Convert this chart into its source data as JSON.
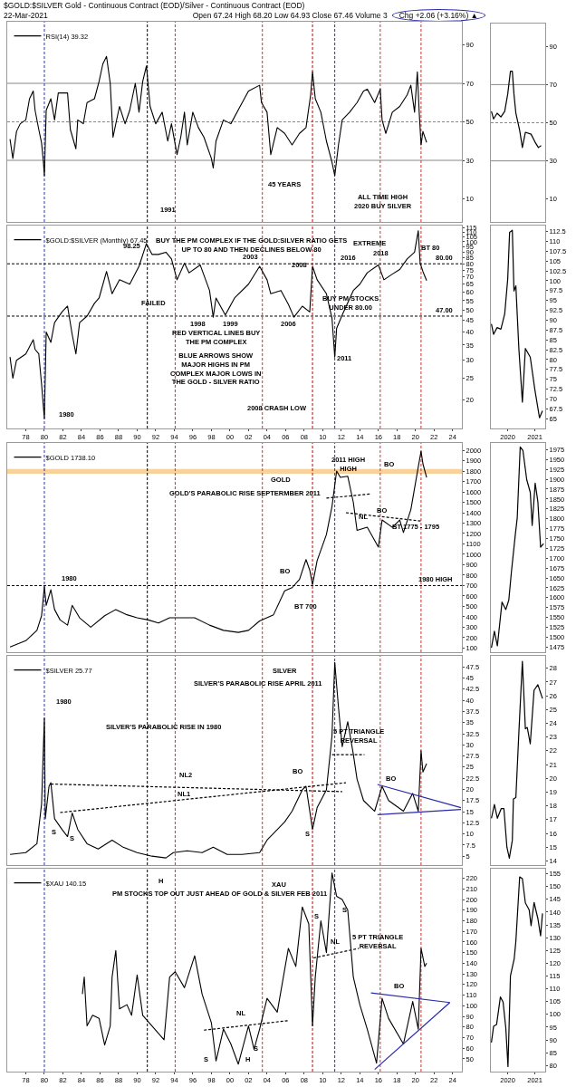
{
  "chart_data": [
    {
      "type": "line",
      "title": "$GOLD:$SILVER Gold - Continuous Contract (EOD)/Silver - Continuous Contract (EOD)",
      "subtitle": "22-Mar-2021",
      "legend": "top left",
      "tick_labels": "y",
      "xlim": [
        1976,
        2025
      ],
      "ylim": [
        -2,
        102
      ],
      "yticks": [
        10,
        30,
        50,
        70,
        90
      ],
      "series": [
        {
          "name": "RSI(14) 39.32",
          "color": "#000000",
          "x": [
            1976.3,
            1976.6,
            1977.0,
            1977.4,
            1978.0,
            1978.4,
            1978.8,
            1979.0,
            1979.4,
            1979.7,
            1979.9,
            1980.0,
            1980.2,
            1980.7,
            1981.1,
            1981.5,
            1982.5,
            1982.8,
            1983.4,
            1983.6,
            1984.2,
            1984.6,
            1985.4,
            1985.9,
            1986.3,
            1986.7,
            1987.1,
            1987.4,
            1987.7,
            1988.1,
            1988.7,
            1989.2,
            1989.8,
            1990.2,
            1990.6,
            1991.0,
            1991.4,
            1992.0,
            1992.7,
            1993.3,
            1993.7,
            1994.3,
            1994.7,
            1995.1,
            1995.4,
            1996.0,
            1996.6,
            1997.2,
            1998.0,
            1998.2,
            1998.5,
            1999.3,
            2000.1,
            2001.1,
            2002.0,
            2003.2,
            2003.4,
            2004.0,
            2004.4,
            2005.1,
            2005.9,
            2006.7,
            2007.5,
            2008.2,
            2008.7,
            2008.9,
            2009.2,
            2009.8,
            2010.4,
            2011.0,
            2011.3,
            2011.7,
            2012.1,
            2012.9,
            2013.7,
            2014.4,
            2014.8,
            2015.6,
            2016.2,
            2016.4,
            2016.8,
            2017.5,
            2018.3,
            2019.1,
            2019.5,
            2019.9,
            2020.2,
            2020.4,
            2020.6,
            2020.8,
            2021.2
          ],
          "values": [
            41,
            31,
            45,
            49,
            51,
            62,
            66,
            56,
            46,
            39,
            29,
            22,
            56,
            62,
            51,
            65,
            65,
            46,
            36,
            51,
            49,
            60,
            62,
            71,
            80,
            84,
            70,
            42,
            49,
            58,
            49,
            56,
            70,
            55,
            71,
            79,
            58,
            49,
            55,
            40,
            49,
            33,
            42,
            55,
            38,
            55,
            47,
            42,
            31,
            26,
            40,
            51,
            49,
            58,
            66,
            69,
            60,
            55,
            33,
            47,
            44,
            38,
            44,
            47,
            64,
            76,
            62,
            55,
            40,
            29,
            22,
            38,
            51,
            55,
            60,
            66,
            67,
            60,
            67,
            51,
            44,
            55,
            58,
            64,
            69,
            55,
            76,
            55,
            38,
            45,
            39.32
          ]
        }
      ],
      "ref_lines": [
        {
          "axis": "y",
          "value": 70,
          "color": "#888888",
          "line_style": "solid"
        },
        {
          "axis": "y",
          "value": 50,
          "color": "#888888",
          "line_style": "dashed"
        },
        {
          "axis": "y",
          "value": 30,
          "color": "#888888",
          "line_style": "solid"
        },
        {
          "axis": "x",
          "value": 1980,
          "color": "#3333aa",
          "line_style": "dashed"
        },
        {
          "axis": "x",
          "value": 1991.1,
          "color": "#000000",
          "line_style": "dashed"
        },
        {
          "axis": "x",
          "value": 1994.1,
          "color": "#cc3333",
          "line_style": "dashed"
        },
        {
          "axis": "x",
          "value": 2003.5,
          "color": "#cc3333",
          "line_style": "dashed"
        },
        {
          "axis": "x",
          "value": 2008.9,
          "color": "#cc0000",
          "line_style": "dashed"
        },
        {
          "axis": "x",
          "value": 2011.3,
          "color": "#3333aa",
          "line_style": "dashed"
        },
        {
          "axis": "x",
          "value": 2016.2,
          "color": "#cc3333",
          "line_style": "dashed"
        },
        {
          "axis": "x",
          "value": 2020.6,
          "color": "#cc3333",
          "line_style": "dashed"
        }
      ],
      "annotations": [
        "Open 67.24 High 68.20 Low 64.93 Close 67.46 Volume 3",
        "Chg +2.06 (+3.16%) ▲",
        "45 YEARS",
        "ALL TIME HIGH\n2020 BUY SILVER",
        "1991"
      ]
    },
    {
      "type": "line",
      "tick_labels": "y",
      "xlim": [
        2019.38,
        2021.38
      ],
      "ylim": [
        -2,
        102
      ],
      "yticks": [
        10,
        30,
        50,
        70,
        90
      ],
      "series": [
        {
          "color": "#000000",
          "x": [
            2019.4,
            2019.48,
            2019.61,
            2019.75,
            2019.89,
            2020.0,
            2020.1,
            2020.17,
            2020.23,
            2020.3,
            2020.44,
            2020.54,
            2020.65,
            2020.86,
            2021.0,
            2021.13,
            2021.23
          ],
          "values": [
            56,
            52,
            55,
            53,
            56,
            65,
            77,
            77,
            65,
            55,
            46,
            37,
            45,
            44,
            40,
            37,
            38
          ]
        }
      ],
      "ref_lines": [
        {
          "axis": "y",
          "value": 70,
          "color": "#888888",
          "line_style": "solid"
        },
        {
          "axis": "y",
          "value": 50,
          "color": "#888888",
          "line_style": "dashed"
        },
        {
          "axis": "y",
          "value": 30,
          "color": "#888888",
          "line_style": "solid"
        }
      ]
    },
    {
      "type": "line",
      "log": true,
      "legend": "top left",
      "xlim": [
        1976,
        2025
      ],
      "ylim": [
        15,
        118
      ],
      "yticks": [
        20,
        25,
        30,
        35,
        40,
        45,
        50,
        55,
        60,
        65,
        70,
        75,
        80,
        85,
        90,
        95,
        100,
        105,
        110,
        115
      ],
      "xticks": [
        {
          "value": 1978,
          "label": "78"
        },
        {
          "value": 1980,
          "label": "80"
        },
        {
          "value": 1982,
          "label": "82"
        },
        {
          "value": 1984,
          "label": "84"
        },
        {
          "value": 1986,
          "label": "86"
        },
        {
          "value": 1988,
          "label": "88"
        },
        {
          "value": 1990,
          "label": "90"
        },
        {
          "value": 1992,
          "label": "92"
        },
        {
          "value": 1994,
          "label": "94"
        },
        {
          "value": 1996,
          "label": "96"
        },
        {
          "value": 1998,
          "label": "98"
        },
        {
          "value": 2000,
          "label": "00"
        },
        {
          "value": 2002,
          "label": "02"
        },
        {
          "value": 2004,
          "label": "04"
        },
        {
          "value": 2006,
          "label": "06"
        },
        {
          "value": 2008,
          "label": "08"
        },
        {
          "value": 2010,
          "label": "10"
        },
        {
          "value": 2012,
          "label": "12"
        },
        {
          "value": 2014,
          "label": "14"
        },
        {
          "value": 2016,
          "label": "16"
        },
        {
          "value": 2018,
          "label": "18"
        },
        {
          "value": 2020,
          "label": "20"
        },
        {
          "value": 2022,
          "label": "22"
        },
        {
          "value": 2024,
          "label": "24"
        }
      ],
      "series": [
        {
          "name": "$GOLD:$SILVER (Monthly) 67.45",
          "color": "#000000",
          "x": [
            1976.3,
            1976.6,
            1977.0,
            1978.0,
            1978.8,
            1979.0,
            1979.4,
            1979.7,
            1980.0,
            1980.2,
            1980.7,
            1981.1,
            1981.9,
            1982.5,
            1983.0,
            1983.4,
            1983.8,
            1984.6,
            1985.4,
            1985.9,
            1986.7,
            1987.3,
            1988.1,
            1989.2,
            1990.2,
            1991.0,
            1991.6,
            1992.3,
            1993.1,
            1993.7,
            1994.3,
            1995.1,
            1995.6,
            1996.8,
            1997.8,
            1998.2,
            1998.5,
            1999.5,
            2000.5,
            2002.0,
            2003.2,
            2004.0,
            2004.4,
            2005.5,
            2006.3,
            2006.9,
            2007.8,
            2008.6,
            2008.9,
            2009.4,
            2010.4,
            2011.0,
            2011.3,
            2011.5,
            2012.1,
            2013.3,
            2014.0,
            2014.8,
            2016.0,
            2016.6,
            2017.5,
            2018.3,
            2019.1,
            2019.9,
            2020.3,
            2020.5,
            2020.8,
            2021.2
          ],
          "values": [
            31,
            25,
            30,
            32,
            37,
            33.5,
            32,
            23.5,
            16.6,
            40,
            36,
            44,
            49,
            52,
            39,
            32,
            44,
            47,
            53.5,
            56.5,
            74,
            59,
            68,
            65,
            78,
            98.25,
            88,
            88,
            90,
            84,
            68,
            80.5,
            73,
            79,
            61,
            46.5,
            56.5,
            47.5,
            56.5,
            65,
            78,
            68,
            59,
            61,
            53,
            46.5,
            52,
            49,
            78,
            68,
            59,
            46,
            31,
            41.5,
            47.5,
            61,
            65,
            73,
            79,
            68,
            72,
            75.5,
            84,
            90,
            112,
            80.5,
            74,
            67.45
          ]
        }
      ],
      "ref_lines": [
        {
          "axis": "y",
          "value": 80,
          "label": "80.00",
          "color": "#000000",
          "line_style": "dashed"
        },
        {
          "axis": "y",
          "value": 47,
          "label": "47.00",
          "color": "#000000",
          "line_style": "dashed"
        },
        {
          "axis": "x",
          "value": 1980,
          "color": "#3333aa",
          "line_style": "dashed"
        },
        {
          "axis": "x",
          "value": 1991.1,
          "color": "#000000",
          "line_style": "dashed"
        },
        {
          "axis": "x",
          "value": 1994.1,
          "color": "#cc3333",
          "line_style": "dashed"
        },
        {
          "axis": "x",
          "value": 2003.5,
          "color": "#cc3333",
          "line_style": "dashed"
        },
        {
          "axis": "x",
          "value": 2008.9,
          "color": "#cc0000",
          "line_style": "dashed"
        },
        {
          "axis": "x",
          "value": 2011.3,
          "color": "#3333aa",
          "line_style": "dashed"
        },
        {
          "axis": "x",
          "value": 2016.2,
          "color": "#cc3333",
          "line_style": "dashed"
        },
        {
          "axis": "x",
          "value": 2020.6,
          "color": "#cc3333",
          "line_style": "dashed"
        }
      ],
      "annotations": [
        "BUY THE PM COMPLEX IF THE GOLD:SILVER RATIO GETS\nUP TO 80 AND THEN DECLINES BELOW 80",
        "98.25",
        "FAILED",
        "2003",
        "2008",
        "2016",
        "2018",
        "EXTREME",
        "BT 80",
        "1998",
        "1999",
        "2006",
        "BUY PM STOCKS\nUNDER 80.00",
        "RED VERTICAL LINES BUY\nTHE PM COMPLEX",
        "BLUE ARROWS SHOW\nMAJOR HIGHS IN PM\nCOMPLEX MAJOR LOWS IN\nTHE GOLD - SILVER RATIO",
        "2008 CRASH LOW",
        "2011",
        "1980"
      ]
    },
    {
      "type": "line",
      "xlim": [
        2019.38,
        2021.38
      ],
      "xticks": [
        {
          "value": 2020,
          "label": "2020"
        },
        {
          "value": 2021,
          "label": "2021"
        }
      ],
      "ylim": [
        62.5,
        114
      ],
      "yticks": [
        65,
        67.5,
        70,
        72.5,
        75,
        77.5,
        80,
        82.5,
        85,
        87.5,
        90,
        92.5,
        95,
        97.5,
        100,
        102.5,
        105,
        107.5,
        110,
        112.5
      ],
      "series": [
        {
          "color": "#000000",
          "x": [
            2019.4,
            2019.48,
            2019.61,
            2019.75,
            2019.89,
            2020.0,
            2020.07,
            2020.17,
            2020.23,
            2020.3,
            2020.41,
            2020.54,
            2020.65,
            2020.83,
            2021.0,
            2021.17,
            2021.28
          ],
          "values": [
            89,
            86.4,
            88.1,
            87.7,
            91.6,
            100.4,
            112.3,
            112.8,
            97.4,
            98.7,
            82.8,
            69.2,
            82.8,
            80.6,
            72.3,
            65.2,
            67
          ]
        }
      ]
    },
    {
      "type": "line",
      "legend": "top left",
      "tick_labels": "y",
      "xlim": [
        1976,
        2025
      ],
      "ylim": [
        60,
        2070
      ],
      "yticks": [
        100,
        200,
        300,
        400,
        500,
        600,
        700,
        800,
        900,
        1000,
        1100,
        1200,
        1300,
        1400,
        1500,
        1600,
        1700,
        1800,
        1900,
        2000
      ],
      "series": [
        {
          "name": "$GOLD 1738.10",
          "color": "#000000",
          "x": [
            1976.3,
            1978.0,
            1979.2,
            1979.7,
            1980.0,
            1980.2,
            1980.7,
            1981.1,
            1981.7,
            1982.5,
            1983.0,
            1983.8,
            1985.0,
            1986.5,
            1987.7,
            1988.9,
            1990.0,
            1991.2,
            1992.3,
            1993.5,
            1994.7,
            1996.2,
            1997.8,
            1999.3,
            2000.9,
            2002.0,
            2003.2,
            2004.7,
            2005.9,
            2006.7,
            2007.5,
            2008.2,
            2008.6,
            2008.9,
            2009.4,
            2010.4,
            2011.0,
            2011.5,
            2011.9,
            2012.7,
            2013.3,
            2013.7,
            2014.8,
            2016.0,
            2016.4,
            2017.5,
            2018.3,
            2018.7,
            2019.5,
            2020.3,
            2020.6,
            2020.8,
            2021.2
          ],
          "values": [
            110,
            170,
            270,
            410,
            690,
            510,
            660,
            470,
            370,
            320,
            510,
            390,
            300,
            410,
            470,
            420,
            390,
            370,
            340,
            390,
            390,
            390,
            320,
            270,
            250,
            270,
            360,
            420,
            650,
            680,
            760,
            950,
            850,
            710,
            940,
            1190,
            1460,
            1800,
            1740,
            1750,
            1500,
            1230,
            1260,
            1070,
            1330,
            1260,
            1330,
            1210,
            1430,
            1840,
            1990,
            1870,
            1738.1
          ]
        },
        {
          "type": "line",
          "color": "#000000",
          "line_style": "dashed",
          "x": [
            2010.4,
            2015.2
          ],
          "values": [
            1540,
            1580
          ]
        },
        {
          "type": "line",
          "color": "#000000",
          "line_style": "dashed",
          "x": [
            2012.5,
            2020.6
          ],
          "values": [
            1400,
            1320
          ]
        }
      ],
      "bands": [
        {
          "axis": "y",
          "from": 1775,
          "to": 1820,
          "color": "#f5c27a"
        }
      ],
      "ref_lines": [
        {
          "axis": "y",
          "value": 700,
          "label": "1980 HIGH",
          "color": "#000000",
          "line_style": "dashed"
        },
        {
          "axis": "x",
          "value": 1980,
          "color": "#3333aa",
          "line_style": "dashed"
        },
        {
          "axis": "x",
          "value": 1991.1,
          "color": "#000000",
          "line_style": "dashed"
        },
        {
          "axis": "x",
          "value": 1994.1,
          "color": "#cc3333",
          "line_style": "dashed"
        },
        {
          "axis": "x",
          "value": 2003.5,
          "color": "#cc3333",
          "line_style": "dashed"
        },
        {
          "axis": "x",
          "value": 2008.9,
          "color": "#cc0000",
          "line_style": "dashed"
        },
        {
          "axis": "x",
          "value": 2011.3,
          "color": "#3333aa",
          "line_style": "dashed"
        },
        {
          "axis": "x",
          "value": 2016.2,
          "color": "#cc3333",
          "line_style": "dashed"
        },
        {
          "axis": "x",
          "value": 2020.6,
          "color": "#cc3333",
          "line_style": "dashed"
        }
      ],
      "annotations": [
        "2011 HIGH\nHIGH",
        "GOLD",
        "GOLD'S PARABOLIC RISE SEPTERMBER 2011",
        "NL",
        "BO",
        "BO",
        "BT 1775 - 1795",
        "BO",
        "1980",
        "BT 700"
      ]
    },
    {
      "type": "line",
      "tick_labels": "y",
      "xlim": [
        2019.38,
        2021.38
      ],
      "ylim": [
        1462,
        1992
      ],
      "yticks": [
        1475,
        1500,
        1525,
        1550,
        1575,
        1600,
        1625,
        1650,
        1675,
        1700,
        1725,
        1750,
        1775,
        1800,
        1825,
        1850,
        1875,
        1900,
        1925,
        1950,
        1975
      ],
      "series": [
        {
          "color": "#000000",
          "x": [
            2019.4,
            2019.51,
            2019.62,
            2019.79,
            2019.93,
            2020.04,
            2020.14,
            2020.28,
            2020.35,
            2020.46,
            2020.56,
            2020.7,
            2020.83,
            2020.9,
            2021.01,
            2021.11,
            2021.21,
            2021.32
          ],
          "values": [
            1473,
            1515,
            1478,
            1589,
            1570,
            1594,
            1668,
            1760,
            1802,
            1982,
            1973,
            1899,
            1867,
            1783,
            1890,
            1843,
            1728,
            1737
          ]
        }
      ]
    },
    {
      "type": "line",
      "legend": "top left",
      "tick_labels": "y",
      "xlim": [
        1976,
        2025
      ],
      "ylim": [
        3,
        50
      ],
      "yticks": [
        5,
        7.5,
        10,
        12.5,
        15,
        17.5,
        20,
        22.5,
        25,
        27.5,
        30,
        32.5,
        35,
        37.5,
        40,
        42.5,
        45,
        47.5
      ],
      "series": [
        {
          "name": "$SILVER 25.77",
          "color": "#000000",
          "x": [
            1976.3,
            1978.0,
            1979.2,
            1979.7,
            1980.0,
            1980.1,
            1980.5,
            1980.7,
            1981.1,
            1981.9,
            1982.5,
            1983.0,
            1983.6,
            1984.6,
            1985.8,
            1987.3,
            1988.5,
            1990.0,
            1991.6,
            1993.1,
            1993.9,
            1995.4,
            1997.0,
            1998.2,
            1999.7,
            2001.3,
            2003.2,
            2004.0,
            2005.9,
            2006.7,
            2007.8,
            2008.2,
            2008.9,
            2009.4,
            2010.4,
            2011.0,
            2011.3,
            2011.7,
            2012.1,
            2012.7,
            2013.3,
            2013.7,
            2014.4,
            2015.6,
            2016.4,
            2017.1,
            2018.7,
            2019.7,
            2020.3,
            2020.6,
            2020.8,
            2021.2
          ],
          "values": [
            5.4,
            5.8,
            7.8,
            16.7,
            36,
            13.4,
            20.7,
            21.5,
            13.4,
            11,
            9.4,
            14.7,
            11,
            7.8,
            6.6,
            8.6,
            7,
            5.8,
            5,
            4.6,
            5.8,
            6.2,
            5.8,
            7,
            5.4,
            5.4,
            5.8,
            8.6,
            12.7,
            15.1,
            19.9,
            20.7,
            11,
            15.9,
            19.9,
            32,
            48.5,
            38.4,
            29.6,
            35.2,
            27.9,
            22.3,
            17.5,
            15.1,
            20.7,
            17.5,
            15.1,
            19.1,
            15.1,
            28.7,
            23.9,
            25.77
          ]
        },
        {
          "type": "line",
          "color": "#000000",
          "line_style": "dashed",
          "x": [
            1980.7,
            2012.1
          ],
          "values": [
            21.2,
            19.5
          ]
        },
        {
          "type": "line",
          "color": "#000000",
          "line_style": "dashed",
          "x": [
            1981.7,
            2012.5
          ],
          "values": [
            14.8,
            21.5
          ]
        },
        {
          "type": "line",
          "color": "#000000",
          "line_style": "dashed",
          "x": [
            2011.0,
            2014.5
          ],
          "values": [
            27.8,
            27.8
          ]
        },
        {
          "type": "line",
          "color": "#2a2aa8",
          "line_style": "solid",
          "x": [
            2015.9,
            2024.9
          ],
          "values": [
            21.1,
            15.9
          ]
        },
        {
          "type": "line",
          "color": "#2a2aa8",
          "line_style": "solid",
          "x": [
            2015.9,
            2024.9
          ],
          "values": [
            14.3,
            15.5
          ]
        }
      ],
      "ref_lines": [
        {
          "axis": "x",
          "value": 1980,
          "color": "#3333aa",
          "line_style": "dashed"
        },
        {
          "axis": "x",
          "value": 1991.1,
          "color": "#000000",
          "line_style": "dashed"
        },
        {
          "axis": "x",
          "value": 1994.1,
          "color": "#cc3333",
          "line_style": "dashed"
        },
        {
          "axis": "x",
          "value": 2003.5,
          "color": "#cc3333",
          "line_style": "dashed"
        },
        {
          "axis": "x",
          "value": 2008.9,
          "color": "#cc0000",
          "line_style": "dashed"
        },
        {
          "axis": "x",
          "value": 2011.3,
          "color": "#3333aa",
          "line_style": "dashed"
        },
        {
          "axis": "x",
          "value": 2016.2,
          "color": "#cc3333",
          "line_style": "dashed"
        },
        {
          "axis": "x",
          "value": 2020.6,
          "color": "#cc3333",
          "line_style": "dashed"
        }
      ],
      "annotations": [
        "SILVER",
        "SILVER'S PARABOLIC RISE APRIL 2011",
        "1980",
        "SILVER'S PARABOLIC RISE IN 1980",
        "NL2",
        "NL1",
        "S",
        "S",
        "S",
        "BO",
        "5 PT TRIANGLE\nREVERSAL",
        "BO"
      ]
    },
    {
      "type": "line",
      "tick_labels": "y",
      "xlim": [
        2019.38,
        2021.38
      ],
      "ylim": [
        13.7,
        28.9
      ],
      "yticks": [
        14,
        15,
        16,
        17,
        18,
        19,
        20,
        21,
        22,
        23,
        24,
        25,
        26,
        27,
        28
      ],
      "series": [
        {
          "color": "#000000",
          "x": [
            2019.4,
            2019.51,
            2019.62,
            2019.76,
            2019.86,
            2019.97,
            2020.06,
            2020.17,
            2020.21,
            2020.3,
            2020.41,
            2020.54,
            2020.65,
            2020.72,
            2020.83,
            2020.97,
            2021.11,
            2021.28
          ],
          "values": [
            17.1,
            18.1,
            17.1,
            17.8,
            17.8,
            15,
            14.2,
            15.5,
            18.5,
            18.6,
            23.3,
            28.5,
            23.6,
            23.7,
            22.5,
            26.4,
            26.8,
            25.8
          ]
        }
      ]
    },
    {
      "type": "line",
      "legend": "top left",
      "xlim": [
        1976,
        2025
      ],
      "ylim": [
        38,
        229
      ],
      "yticks": [
        50,
        60,
        70,
        80,
        90,
        100,
        110,
        120,
        130,
        140,
        150,
        160,
        170,
        180,
        190,
        200,
        210,
        220
      ],
      "xticks": [
        {
          "value": 1978,
          "label": "78"
        },
        {
          "value": 1980,
          "label": "80"
        },
        {
          "value": 1982,
          "label": "82"
        },
        {
          "value": 1984,
          "label": "84"
        },
        {
          "value": 1986,
          "label": "86"
        },
        {
          "value": 1988,
          "label": "88"
        },
        {
          "value": 1990,
          "label": "90"
        },
        {
          "value": 1992,
          "label": "92"
        },
        {
          "value": 1994,
          "label": "94"
        },
        {
          "value": 1996,
          "label": "96"
        },
        {
          "value": 1998,
          "label": "98"
        },
        {
          "value": 2000,
          "label": "00"
        },
        {
          "value": 2002,
          "label": "02"
        },
        {
          "value": 2004,
          "label": "04"
        },
        {
          "value": 2006,
          "label": "06"
        },
        {
          "value": 2008,
          "label": "08"
        },
        {
          "value": 2010,
          "label": "10"
        },
        {
          "value": 2012,
          "label": "12"
        },
        {
          "value": 2014,
          "label": "14"
        },
        {
          "value": 2016,
          "label": "16"
        },
        {
          "value": 2018,
          "label": "18"
        },
        {
          "value": 2020,
          "label": "20"
        },
        {
          "value": 2022,
          "label": "22"
        },
        {
          "value": 2024,
          "label": "24"
        }
      ],
      "series": [
        {
          "name": "$XAU 140.15",
          "color": "#000000",
          "x": [
            1984.1,
            1984.3,
            1984.6,
            1985.2,
            1985.9,
            1986.5,
            1987.1,
            1987.3,
            1987.7,
            1988.1,
            1988.9,
            1989.4,
            1990.0,
            1990.6,
            1991.6,
            1992.9,
            1993.5,
            1994.1,
            1995.1,
            1996.2,
            1997.0,
            1998.0,
            1998.5,
            1999.3,
            2000.1,
            2000.9,
            2002.0,
            2002.6,
            2003.2,
            2004.0,
            2005.1,
            2006.3,
            2007.1,
            2007.8,
            2008.5,
            2008.9,
            2009.2,
            2009.8,
            2010.4,
            2011.0,
            2011.5,
            2012.1,
            2012.7,
            2013.3,
            2014.0,
            2014.8,
            2015.8,
            2016.4,
            2017.1,
            2018.7,
            2019.7,
            2020.3,
            2020.6,
            2021.0,
            2021.2
          ],
          "values": [
            111,
            127,
            81,
            91,
            88,
            63,
            81,
            127,
            152,
            97,
            101,
            91,
            129,
            91,
            81,
            68,
            127,
            132,
            117,
            147,
            111,
            84,
            48,
            78,
            64,
            45,
            81,
            59,
            78,
            107,
            94,
            154,
            137,
            193,
            177,
            81,
            127,
            180,
            150,
            225,
            203,
            200,
            190,
            127,
            101,
            78,
            46,
            107,
            88,
            64,
            104,
            78,
            154,
            137,
            140.15
          ]
        },
        {
          "type": "line",
          "color": "#000000",
          "line_style": "dashed",
          "x": [
            1997.2,
            2006.3
          ],
          "values": [
            77,
            86
          ]
        },
        {
          "type": "line",
          "color": "#000000",
          "line_style": "dashed",
          "x": [
            2009,
            2013.9
          ],
          "values": [
            145,
            154
          ]
        },
        {
          "type": "line",
          "color": "#2a2aa8",
          "line_style": "solid",
          "x": [
            2015.2,
            2023.7
          ],
          "values": [
            112,
            103
          ]
        },
        {
          "type": "line",
          "color": "#2a2aa8",
          "line_style": "solid",
          "x": [
            2015.6,
            2023.7
          ],
          "values": [
            40,
            103
          ]
        }
      ],
      "ref_lines": [
        {
          "axis": "x",
          "value": 1980,
          "color": "#3333aa",
          "line_style": "dashed"
        },
        {
          "axis": "x",
          "value": 1991.1,
          "color": "#000000",
          "line_style": "dashed"
        },
        {
          "axis": "x",
          "value": 1994.1,
          "color": "#cc3333",
          "line_style": "dashed"
        },
        {
          "axis": "x",
          "value": 2003.5,
          "color": "#cc3333",
          "line_style": "dashed"
        },
        {
          "axis": "x",
          "value": 2008.9,
          "color": "#cc0000",
          "line_style": "dashed"
        },
        {
          "axis": "x",
          "value": 2011.3,
          "color": "#3333aa",
          "line_style": "dashed"
        },
        {
          "axis": "x",
          "value": 2016.2,
          "color": "#cc3333",
          "line_style": "dashed"
        },
        {
          "axis": "x",
          "value": 2020.6,
          "color": "#cc3333",
          "line_style": "dashed"
        }
      ],
      "annotations": [
        "H",
        "XAU",
        "PM STOCKS TOP OUT JUST AHEAD OF GOLD & SILVER FEB 2011",
        "S",
        "S",
        "NL",
        "NL",
        "S",
        "H",
        "S",
        "5 PT TRIANGLE\nREVERSAL",
        "BO"
      ]
    },
    {
      "type": "line",
      "xlim": [
        2019.38,
        2021.38
      ],
      "xticks": [
        {
          "value": 2020,
          "label": "2020"
        },
        {
          "value": 2021,
          "label": "2021"
        }
      ],
      "ylim": [
        77.6,
        157
      ],
      "yticks": [
        80,
        85,
        90,
        95,
        100,
        105,
        110,
        115,
        120,
        125,
        130,
        135,
        140,
        145,
        150,
        155
      ],
      "series": [
        {
          "color": "#000000",
          "x": [
            2019.4,
            2019.48,
            2019.59,
            2019.73,
            2019.83,
            2019.93,
            2020.01,
            2020.1,
            2020.24,
            2020.3,
            2020.44,
            2020.54,
            2020.65,
            2020.79,
            2020.86,
            2020.97,
            2021.11,
            2021.21,
            2021.28
          ],
          "values": [
            89,
            95.3,
            96,
            106.8,
            104.8,
            94.6,
            79.6,
            115,
            121.8,
            128.6,
            153.8,
            153.1,
            143.6,
            140.9,
            134.7,
            143.8,
            137.5,
            130.7,
            139.5
          ]
        }
      ]
    }
  ]
}
